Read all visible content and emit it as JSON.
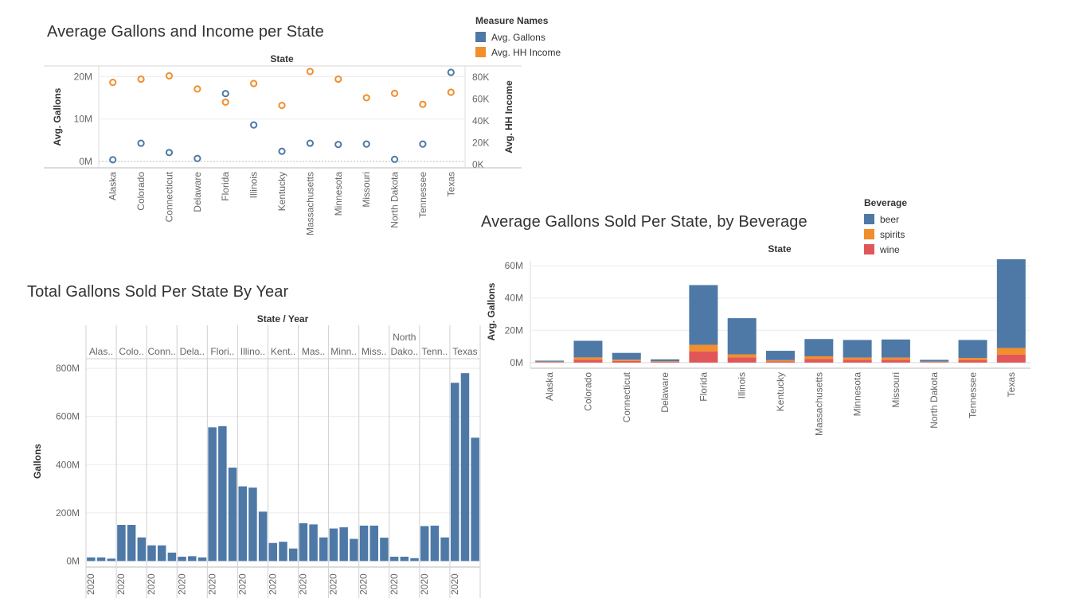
{
  "colors": {
    "beer": "#4e79a7",
    "spirits": "#f28e2b",
    "wine": "#e15759",
    "gallons": "#4e79a7",
    "income": "#f28e2b"
  },
  "charts": {
    "scatter": {
      "title": "Average Gallons and Income per State",
      "header": "State",
      "ylabel_left": "Avg. Gallons",
      "ylabel_right": "Avg. HH Income",
      "left_ticks": [
        "20M",
        "10M",
        "0M"
      ],
      "right_ticks": [
        "80K",
        "60K",
        "40K",
        "20K",
        "0K"
      ],
      "legend": {
        "title": "Measure Names",
        "items": [
          "Avg. Gallons",
          "Avg. HH Income"
        ]
      }
    },
    "stacked": {
      "title": "Average Gallons Sold Per State, by Beverage",
      "header": "State",
      "ylabel": "Avg. Gallons",
      "ticks": [
        "60M",
        "40M",
        "20M",
        "0M"
      ],
      "legend": {
        "title": "Beverage",
        "items": [
          "beer",
          "spirits",
          "wine"
        ]
      }
    },
    "yearly": {
      "title": "Total Gallons Sold Per State By Year",
      "header": "State / Year",
      "ylabel": "Gallons",
      "ticks": [
        "800M",
        "600M",
        "400M",
        "200M",
        "0M"
      ]
    }
  },
  "chart_data": [
    {
      "type": "scatter",
      "title": "Average Gallons and Income per State",
      "xlabel": "State",
      "categories": [
        "Alaska",
        "Colorado",
        "Connecticut",
        "Delaware",
        "Florida",
        "Illinois",
        "Kentucky",
        "Massachusetts",
        "Minnesota",
        "Missouri",
        "North Dakota",
        "Tennessee",
        "Texas"
      ],
      "series": [
        {
          "name": "Avg. Gallons",
          "axis": "left",
          "values": [
            0.4,
            4.3,
            2.1,
            0.7,
            16.0,
            8.6,
            2.4,
            4.3,
            4.0,
            4.1,
            0.5,
            4.1,
            21.0
          ]
        },
        {
          "name": "Avg. HH Income",
          "axis": "right",
          "values": [
            75000,
            78000,
            81000,
            69000,
            57000,
            74000,
            54000,
            85000,
            78000,
            61000,
            65000,
            55000,
            66000
          ]
        }
      ],
      "ylabel": "Avg. Gallons",
      "ylim": [
        -1.5,
        22.5
      ],
      "yunit": "M",
      "y2label": "Avg. HH Income",
      "y2lim": [
        -3000,
        90000
      ]
    },
    {
      "type": "bar",
      "stacked": true,
      "title": "Average Gallons Sold Per State, by Beverage",
      "xlabel": "State",
      "ylabel": "Avg. Gallons",
      "categories": [
        "Alaska",
        "Colorado",
        "Connecticut",
        "Delaware",
        "Florida",
        "Illinois",
        "Kentucky",
        "Massachusetts",
        "Minnesota",
        "Missouri",
        "North Dakota",
        "Tennessee",
        "Texas"
      ],
      "series": [
        {
          "name": "wine",
          "values": [
            0.3,
            1.8,
            1.0,
            0.4,
            7.0,
            3.3,
            0.8,
            2.2,
            1.8,
            1.8,
            0.3,
            1.6,
            5.0
          ]
        },
        {
          "name": "spirits",
          "values": [
            0.3,
            1.4,
            0.8,
            0.4,
            4.0,
            1.8,
            0.7,
            1.7,
            1.3,
            1.3,
            0.3,
            1.3,
            4.0
          ]
        },
        {
          "name": "beer",
          "values": [
            0.6,
            10.3,
            4.2,
            1.2,
            37.0,
            22.4,
            5.8,
            10.7,
            10.9,
            11.2,
            1.1,
            11.1,
            55.0
          ]
        }
      ],
      "ylim": [
        -3.5,
        63
      ],
      "yunit": "M"
    },
    {
      "type": "bar",
      "title": "Total Gallons Sold Per State By Year",
      "xlabel": "State / Year",
      "ylabel": "Gallons",
      "groups": [
        {
          "label": "Alas..",
          "values": [
            15,
            15,
            10
          ]
        },
        {
          "label": "Colo..",
          "values": [
            150,
            150,
            98
          ]
        },
        {
          "label": "Conn..",
          "values": [
            65,
            65,
            35
          ]
        },
        {
          "label": "Dela..",
          "values": [
            18,
            20,
            15
          ]
        },
        {
          "label": "Flori..",
          "values": [
            555,
            560,
            388
          ]
        },
        {
          "label": "Illino..",
          "values": [
            310,
            305,
            205
          ]
        },
        {
          "label": "Kent..",
          "values": [
            75,
            80,
            52
          ]
        },
        {
          "label": "Mas..",
          "values": [
            157,
            152,
            98
          ]
        },
        {
          "label": "Minn..",
          "values": [
            135,
            140,
            92
          ]
        },
        {
          "label": "Miss..",
          "values": [
            147,
            147,
            97
          ]
        },
        {
          "label": [
            "North",
            "Dako.."
          ],
          "values": [
            18,
            18,
            12
          ]
        },
        {
          "label": "Tenn..",
          "values": [
            145,
            147,
            98
          ]
        },
        {
          "label": "Texas",
          "values": [
            740,
            780,
            512
          ]
        }
      ],
      "visible_year_label": "2020",
      "ylim": [
        -25,
        840
      ],
      "yunit": "M"
    }
  ]
}
